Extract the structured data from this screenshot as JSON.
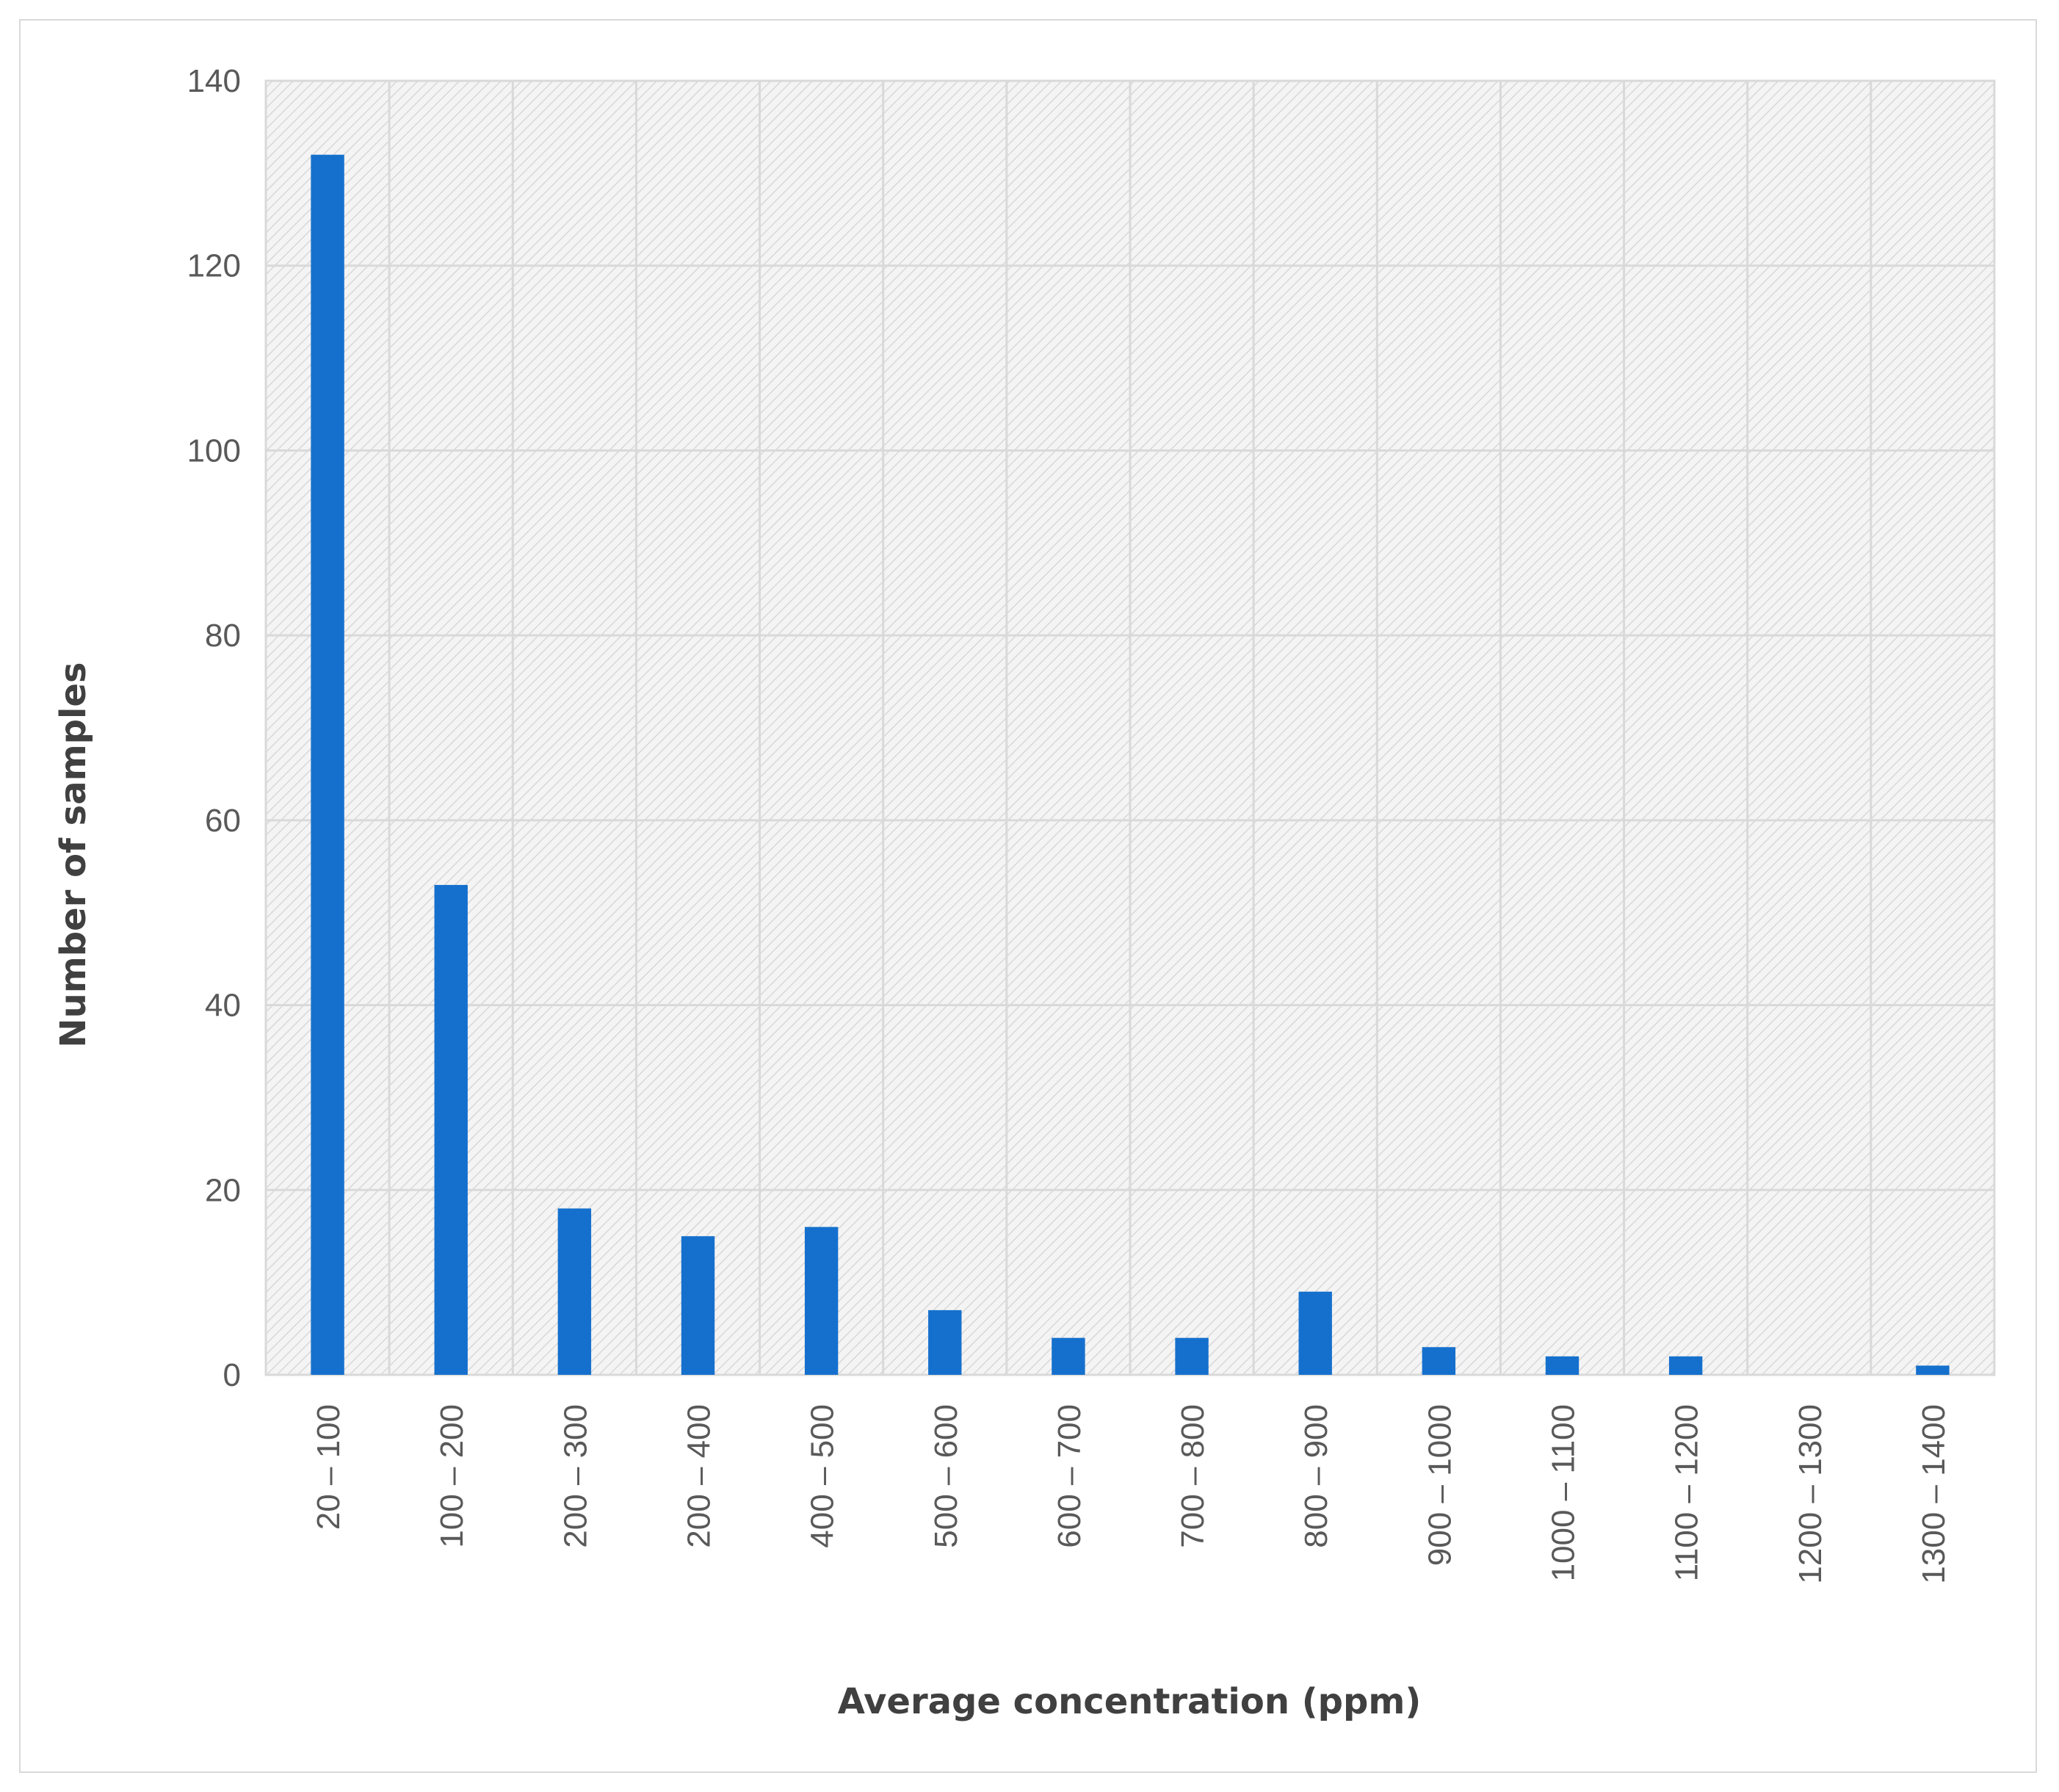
{
  "chart_data": {
    "type": "bar",
    "title": "",
    "xlabel": "Average concentration (ppm)",
    "ylabel": "Number of samples",
    "categories": [
      "20 – 100",
      "100 – 200",
      "200 – 300",
      "200 – 400",
      "400 – 500",
      "500 – 600",
      "600 – 700",
      "700 – 800",
      "800 – 900",
      "900 – 1000",
      "1000 – 1100",
      "1100 – 1200",
      "1200 – 1300",
      "1300 – 1400"
    ],
    "values": [
      132,
      53,
      18,
      15,
      16,
      7,
      4,
      4,
      9,
      3,
      2,
      2,
      0,
      1
    ],
    "ylim": [
      0,
      140
    ],
    "yticks": [
      "0",
      "20",
      "40",
      "60",
      "80",
      "100",
      "120",
      "140"
    ],
    "grid": true,
    "colors": {
      "bar": "#1570CD",
      "grid": "#d9d9d9",
      "plot_bg": "#f2f2f2",
      "hatch": "#d6d6d6"
    }
  }
}
